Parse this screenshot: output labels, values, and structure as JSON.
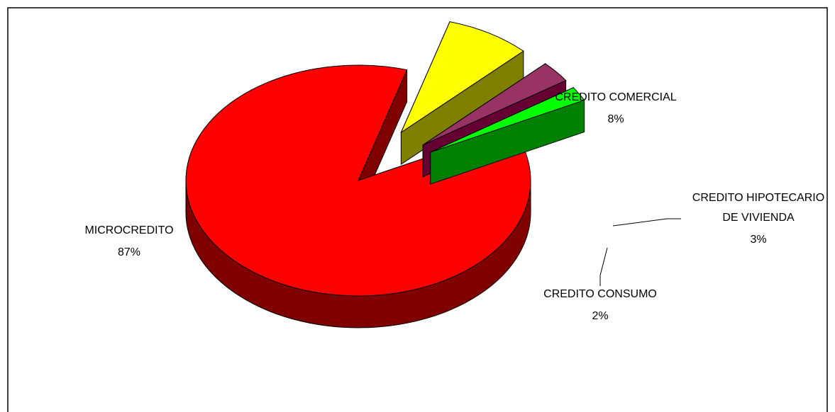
{
  "chart_data": {
    "type": "pie",
    "title": "",
    "three_d": true,
    "legend": "none",
    "series": [
      {
        "values": [
          87,
          8,
          3,
          2
        ],
        "colors": [
          "#FF0000",
          "#FFFF00",
          "#993366",
          "#00FF00"
        ],
        "side_colors": [
          "#800000",
          "#808000",
          "#660033",
          "#008000"
        ]
      }
    ],
    "slices": [
      {
        "id": "microcredito",
        "label": "MICROCREDITO",
        "value": 87,
        "value_text": "87%",
        "color": "#FF0000",
        "side_color": "#800000"
      },
      {
        "id": "credito-comercial",
        "label": "CREDITO COMERCIAL",
        "value": 8,
        "value_text": "8%",
        "color": "#FFFF00",
        "side_color": "#808000"
      },
      {
        "id": "credito-hipotecario",
        "label_lines": [
          "CREDITO HIPOTECARIO",
          "DE VIVIENDA"
        ],
        "value": 3,
        "value_text": "3%",
        "color": "#993366",
        "side_color": "#660033"
      },
      {
        "id": "credito-consumo",
        "label": "CREDITO CONSUMO",
        "value": 2,
        "value_text": "2%",
        "color": "#00FF00",
        "side_color": "#008000"
      }
    ]
  }
}
